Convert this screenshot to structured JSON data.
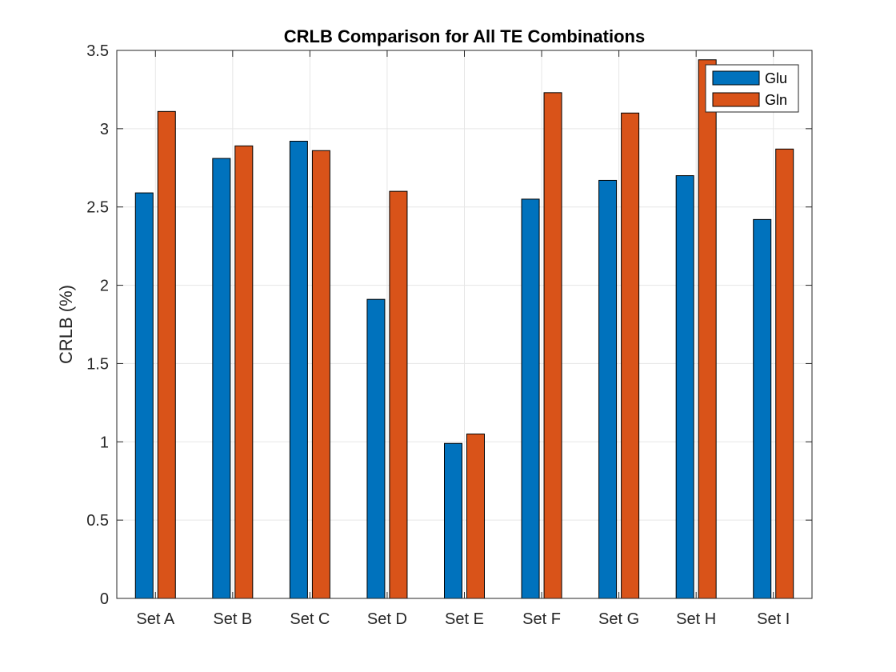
{
  "chart_data": {
    "type": "bar",
    "title": "CRLB Comparison for All TE Combinations",
    "xlabel": "",
    "ylabel": "CRLB (%)",
    "ylim": [
      0,
      3.5
    ],
    "yticks": [
      0,
      0.5,
      1,
      1.5,
      2,
      2.5,
      3,
      3.5
    ],
    "ytick_labels": [
      "0",
      "0.5",
      "1",
      "1.5",
      "2",
      "2.5",
      "3",
      "3.5"
    ],
    "categories": [
      "Set A",
      "Set B",
      "Set C",
      "Set D",
      "Set E",
      "Set F",
      "Set G",
      "Set H",
      "Set I"
    ],
    "series": [
      {
        "name": "Glu",
        "color": "#0072BD",
        "values": [
          2.59,
          2.81,
          2.92,
          1.91,
          0.99,
          2.55,
          2.67,
          2.7,
          2.42
        ]
      },
      {
        "name": "Gln",
        "color": "#D95319",
        "values": [
          3.11,
          2.89,
          2.86,
          2.6,
          1.05,
          3.23,
          3.1,
          3.44,
          2.87
        ]
      }
    ],
    "grid": true,
    "legend_position": "top-right"
  }
}
